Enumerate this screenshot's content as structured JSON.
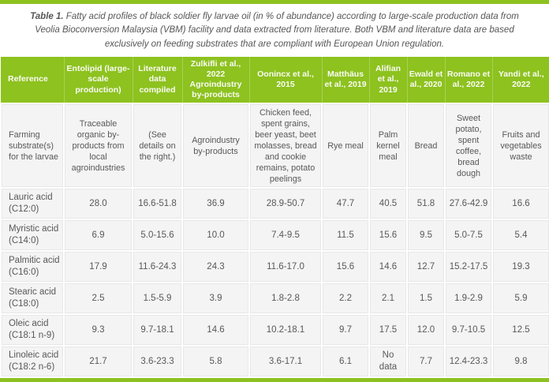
{
  "caption": {
    "label": "Table 1.",
    "text": " Fatty acid profiles of black soldier fly larvae oil (in % of abundance) according to large-scale production data from Veolia Bioconversion Malaysia (VBM) facility and data extracted from literature. Both VBM and literature data are based exclusively on feeding substrates that are compliant with European Union regulation."
  },
  "colors": {
    "accent_green": "#8dc21f",
    "accent_separator": "#aad155",
    "header_text": "#fafaf5",
    "body_text": "#58585a",
    "cell_background": "#f4f4f4"
  },
  "table": {
    "header": [
      "Reference",
      "Entolipid (large-scale production)",
      "Literature data compiled",
      "Zulkifli et al., 2022 Agroindustry by-products",
      "Oonincx et al., 2015",
      "Matthäus et al., 2019",
      "Alifian et al., 2019",
      "Ewald et al., 2020",
      "Romano et al., 2022",
      "Yandi et al., 2022"
    ],
    "rows": [
      [
        "Farming substrate(s) for the larvae",
        "Traceable organic by-products from local agroindustries",
        "(See details on the right.)",
        "Agroindustry by-products",
        "Chicken feed, spent grains, beer yeast, beet molasses, bread and cookie remains, potato peelings",
        "Rye meal",
        "Palm kernel meal",
        "Bread",
        "Sweet potato, spent coffee, bread dough",
        "Fruits and vegetables waste"
      ],
      [
        "Lauric acid (C12:0)",
        "28.0",
        "16.6-51.8",
        "36.9",
        "28.9-50.7",
        "47.7",
        "40.5",
        "51.8",
        "27.6-42.9",
        "16.6"
      ],
      [
        "Myristic acid (C14:0)",
        "6.9",
        "5.0-15.6",
        "10.0",
        "7.4-9.5",
        "11.5",
        "15.6",
        "9.5",
        "5.0-7.5",
        "5.4"
      ],
      [
        "Palmitic acid (C16:0)",
        "17.9",
        "11.6-24.3",
        "24.3",
        "11.6-17.0",
        "15.6",
        "14.6",
        "12.7",
        "15.2-17.5",
        "19.3"
      ],
      [
        "Stearic acid (C18:0)",
        "2.5",
        "1.5-5.9",
        "3.9",
        "1.8-2.8",
        "2.2",
        "2.1",
        "1.5",
        "1.9-2.9",
        "5.9"
      ],
      [
        "Oleic acid (C18:1 n-9)",
        "9.3",
        "9.7-18.1",
        "14.6",
        "10.2-18.1",
        "9.7",
        "17.5",
        "12.0",
        "9.7-10.5",
        "12.5"
      ],
      [
        "Linoleic acid (C18:2 n-6)",
        "21.7",
        "3.6-23.3",
        "5.8",
        "3.6-17.1",
        "6.1",
        "No data",
        "7.7",
        "12.4-23.3",
        "9.8"
      ]
    ]
  }
}
